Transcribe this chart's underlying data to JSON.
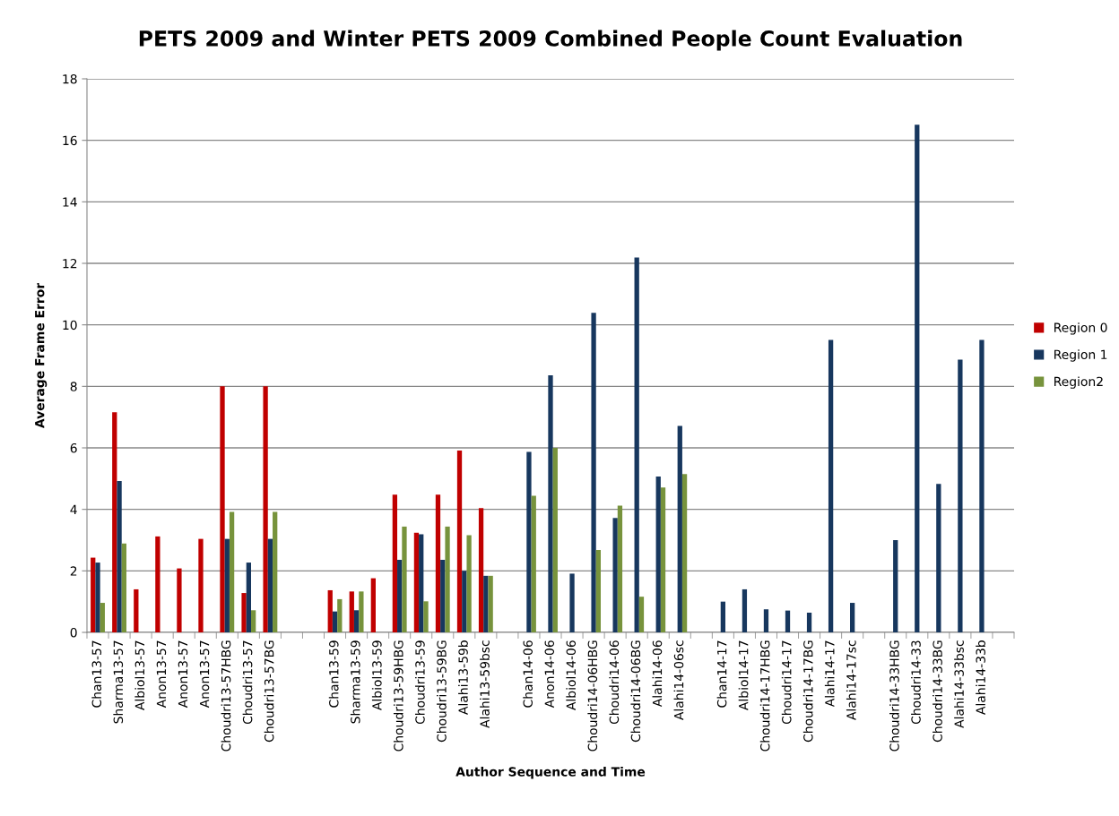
{
  "chart_data": {
    "type": "bar",
    "title": "PETS 2009 and Winter PETS 2009 Combined People Count Evaluation",
    "xlabel": "Author Sequence and Time",
    "ylabel": "Average Frame Error",
    "categories": [
      "Chan13-57",
      "Sharma13-57",
      "Albiol13-57",
      "Anon13-57",
      "Anon13-57",
      "Anon13-57",
      "Choudri13-57HBG",
      "Choudri13-57",
      "Choudri13-57BG",
      null,
      null,
      "Chan13-59",
      "Sharma13-59",
      "Albiol13-59",
      "Choudri13-59HBG",
      "Choudri13-59",
      "Choudri13-59BG",
      "Alahi13-59b",
      "Alahi13-59bsc",
      null,
      "Chan14-06",
      "Anon14-06",
      "Albiol14-06",
      "Choudri14-06HBG",
      "Choudri14-06",
      "Choudri14-06BG",
      "Alahi14-06",
      "Alahi14-06sc",
      null,
      "Chan14-17",
      "Albiol14-17",
      "Choudri14-17HBG",
      "Choudri14-17",
      "Choudri14-17BG",
      "Alahi14-17",
      "Alahi14-17sc",
      null,
      "Choudri14-33HBG",
      "Choudri14-33",
      "Choudri14-33BG",
      "Alahi14-33bsc",
      "Alahi14-33b",
      null
    ],
    "series": [
      {
        "name": "Region 0",
        "color": "#c00000",
        "values": [
          2.43,
          7.16,
          1.4,
          3.12,
          2.08,
          3.04,
          8.0,
          1.28,
          8.0,
          null,
          null,
          1.37,
          1.33,
          1.76,
          4.48,
          3.24,
          4.48,
          5.91,
          4.04,
          null,
          null,
          null,
          null,
          null,
          null,
          null,
          null,
          null,
          null,
          null,
          null,
          null,
          null,
          null,
          null,
          null,
          null,
          null,
          null,
          null,
          null,
          null,
          null
        ]
      },
      {
        "name": "Region 1",
        "color": "#17375e",
        "values": [
          2.27,
          4.92,
          null,
          null,
          null,
          null,
          3.04,
          2.27,
          3.04,
          null,
          null,
          0.68,
          0.72,
          null,
          2.36,
          3.19,
          2.36,
          2.0,
          1.84,
          null,
          5.87,
          8.36,
          1.91,
          10.39,
          3.72,
          12.19,
          5.07,
          6.71,
          null,
          1.0,
          1.4,
          0.75,
          0.71,
          0.64,
          9.51,
          0.96,
          null,
          3.0,
          16.51,
          4.83,
          8.87,
          9.51,
          null
        ]
      },
      {
        "name": "Region2",
        "color": "#77933c",
        "values": [
          0.96,
          2.89,
          null,
          null,
          null,
          null,
          3.92,
          0.72,
          3.92,
          null,
          null,
          1.08,
          1.33,
          null,
          3.44,
          1.01,
          3.44,
          3.16,
          1.84,
          null,
          4.44,
          6.0,
          null,
          2.68,
          4.12,
          1.16,
          4.71,
          5.15,
          null,
          null,
          null,
          null,
          null,
          null,
          null,
          null,
          null,
          null,
          null,
          null,
          null,
          null,
          null
        ]
      }
    ],
    "ylim": [
      0,
      18
    ],
    "yticks": [
      0,
      2,
      4,
      6,
      8,
      10,
      12,
      14,
      16,
      18
    ],
    "grid": "y",
    "legend": "right"
  }
}
